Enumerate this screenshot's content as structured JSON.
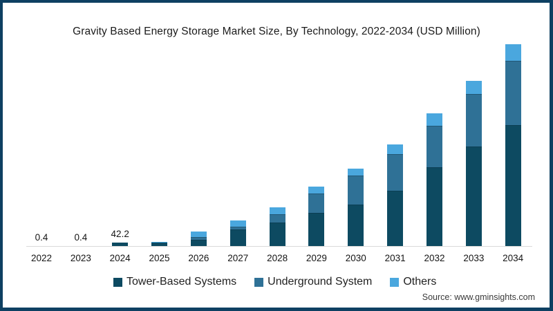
{
  "frame": {
    "border_color": "#0e4062",
    "background": "#ffffff",
    "axis_line_color": "#d9d9d9"
  },
  "chart_data": {
    "type": "bar",
    "stacked": true,
    "title": "Gravity Based Energy Storage Market Size, By Technology, 2022-2034 (USD Million)",
    "xlabel": "",
    "ylabel": "USD Million",
    "ylim": [
      0,
      3000
    ],
    "grid": false,
    "legend_position": "bottom",
    "categories": [
      "2022",
      "2023",
      "2024",
      "2025",
      "2026",
      "2027",
      "2028",
      "2029",
      "2030",
      "2031",
      "2032",
      "2033",
      "2034"
    ],
    "series": [
      {
        "name": "Tower-Based Systems",
        "color": "#0d4a61",
        "values": [
          0.3,
          0.3,
          38,
          42,
          76,
          202,
          287,
          405,
          506,
          675,
          962,
          1215,
          1477
        ]
      },
      {
        "name": "Underground System",
        "color": "#2f7196",
        "values": [
          0.07,
          0.07,
          2.8,
          4,
          34,
          34,
          101,
          236,
          354,
          447,
          506,
          641,
          785
        ]
      },
      {
        "name": "Others",
        "color": "#4aa7de",
        "values": [
          0.03,
          0.03,
          1.4,
          2,
          67,
          76,
          84,
          84,
          84,
          118,
          152,
          160,
          203
        ]
      }
    ],
    "value_labels": [
      "0.4",
      "0.4",
      "42.2",
      "",
      "",
      "",
      "",
      "",
      "",
      "",
      "",
      "",
      ""
    ]
  },
  "source": {
    "text": "Source: www.gminsights.com"
  }
}
